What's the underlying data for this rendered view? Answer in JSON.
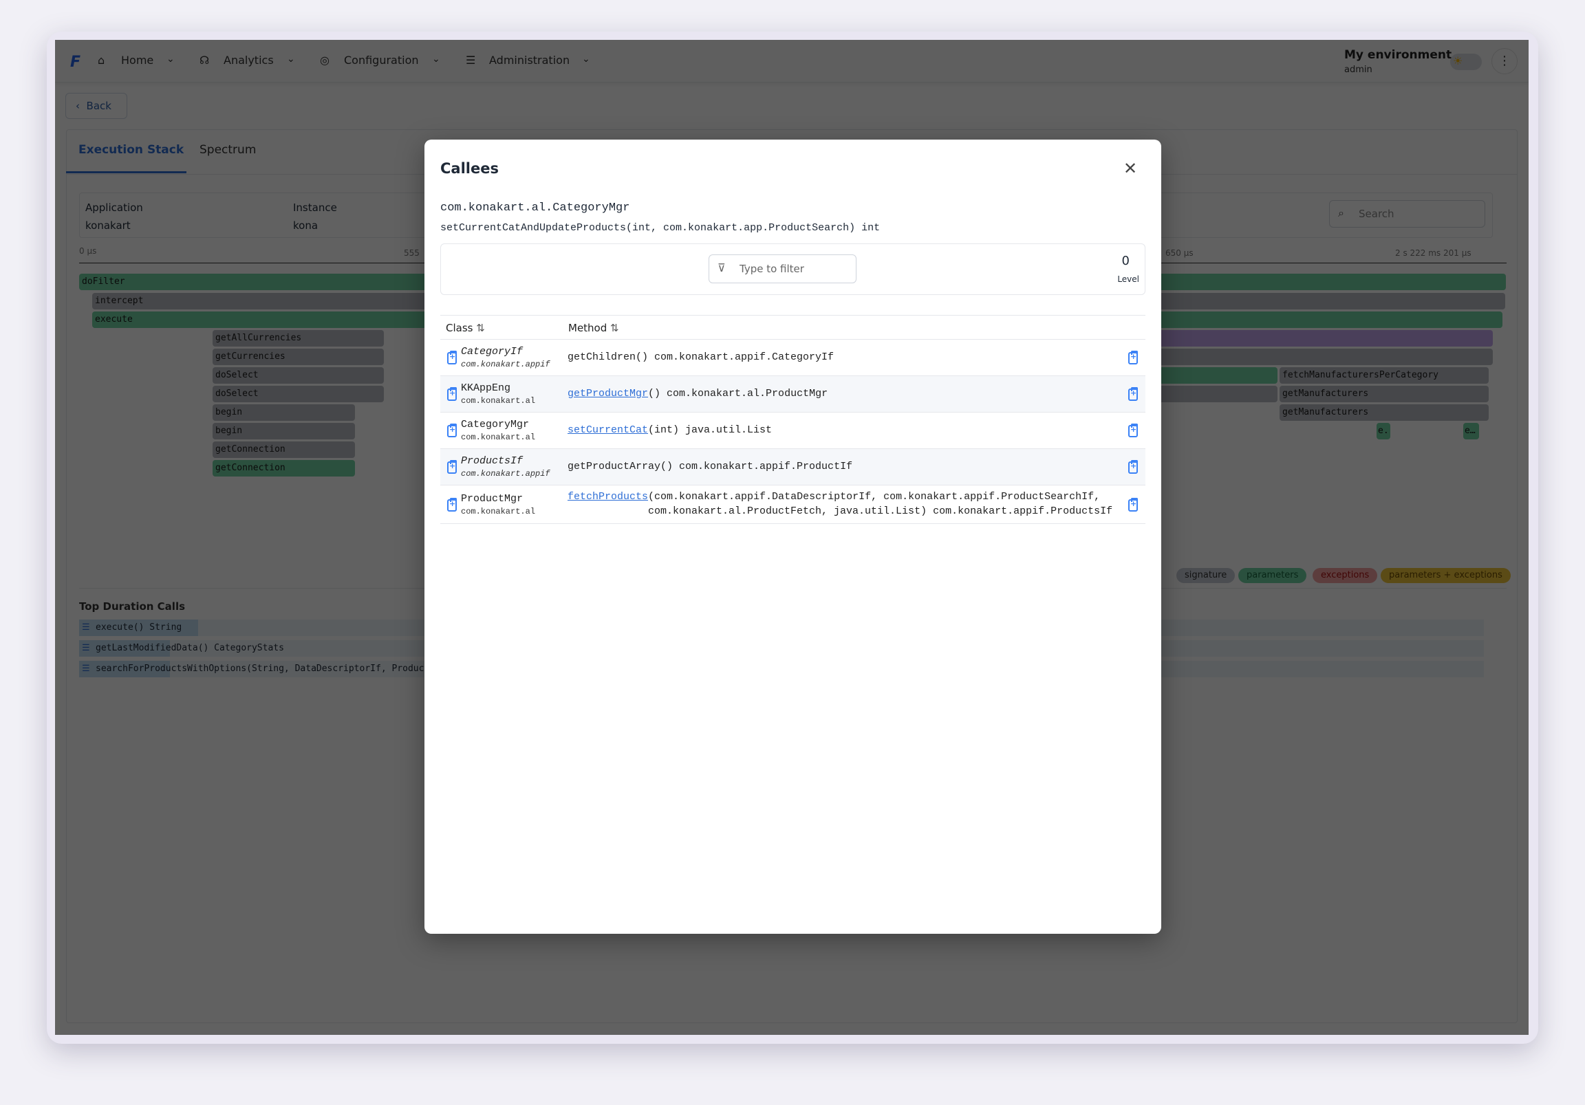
{
  "nav": {
    "items": [
      {
        "label": "Home",
        "icon": "home-icon"
      },
      {
        "label": "Analytics",
        "icon": "analytics-icon"
      },
      {
        "label": "Configuration",
        "icon": "configuration-icon"
      },
      {
        "label": "Administration",
        "icon": "sliders-icon"
      }
    ],
    "environment": "My environment",
    "user": "admin"
  },
  "back_label": "Back",
  "tabs": [
    {
      "label": "Execution Stack",
      "active": true
    },
    {
      "label": "Spectrum",
      "active": false
    }
  ],
  "info": {
    "application_label": "Application",
    "application_value": "konakart",
    "instance_label": "Instance",
    "instance_value": "kona"
  },
  "search_placeholder": "Search",
  "timeline": {
    "start": "0 µs",
    "mid": "555",
    "mid2": "650 µs",
    "end": "2 s 222 ms 201 µs"
  },
  "frames": [
    "doFilter",
    "intercept",
    "execute",
    "getAllCurrencies",
    "getCurrencies",
    "doSelect",
    "doSelect",
    "begin",
    "begin",
    "getConnection",
    "getConnection",
    "fetchManufacturersPerCategory",
    "getManufacturers",
    "getManufacturers",
    "e.",
    "e…"
  ],
  "legend": [
    {
      "label": "signature",
      "color": "#c5cbd6"
    },
    {
      "label": "parameters",
      "color": "#6fd3a2"
    },
    {
      "label": "exceptions",
      "color": "#f2a0a0"
    },
    {
      "label": "parameters + exceptions",
      "color": "#f0c53a"
    }
  ],
  "top_calls": {
    "title": "Top Duration Calls",
    "items": [
      "execute() String",
      "getLastModifiedData() CategoryStats",
      "searchForProductsWithOptions(String, DataDescriptorIf, ProductSearchIf, int, FetchProductOptionsIf) Products"
    ]
  },
  "modal": {
    "title": "Callees",
    "class_name": "com.konakart.al.CategoryMgr",
    "method_sig": "setCurrentCatAndUpdateProducts(int, com.konakart.app.ProductSearch) int",
    "filter_placeholder": "Type to filter",
    "level_value": "0",
    "level_label": "Level",
    "columns": {
      "class": "Class",
      "method": "Method"
    },
    "rows": [
      {
        "class": "CategoryIf",
        "package": "com.konakart.appif",
        "italic": true,
        "link": "",
        "method": "getChildren() com.konakart.appif.CategoryIf"
      },
      {
        "class": "KKAppEng",
        "package": "com.konakart.al",
        "italic": false,
        "link": "getProductMgr",
        "method": "() com.konakart.al.ProductMgr"
      },
      {
        "class": "CategoryMgr",
        "package": "com.konakart.al",
        "italic": false,
        "link": "setCurrentCat",
        "method": "(int) java.util.List"
      },
      {
        "class": "ProductsIf",
        "package": "com.konakart.appif",
        "italic": true,
        "link": "",
        "method": "getProductArray() com.konakart.appif.ProductIf"
      },
      {
        "class": "ProductMgr",
        "package": "com.konakart.al",
        "italic": false,
        "link": "fetchProducts",
        "method": "(com.konakart.appif.DataDescriptorIf, com.konakart.appif.ProductSearchIf,",
        "method_line2": "com.konakart.al.ProductFetch, java.util.List) com.konakart.appif.ProductsIf"
      }
    ]
  }
}
